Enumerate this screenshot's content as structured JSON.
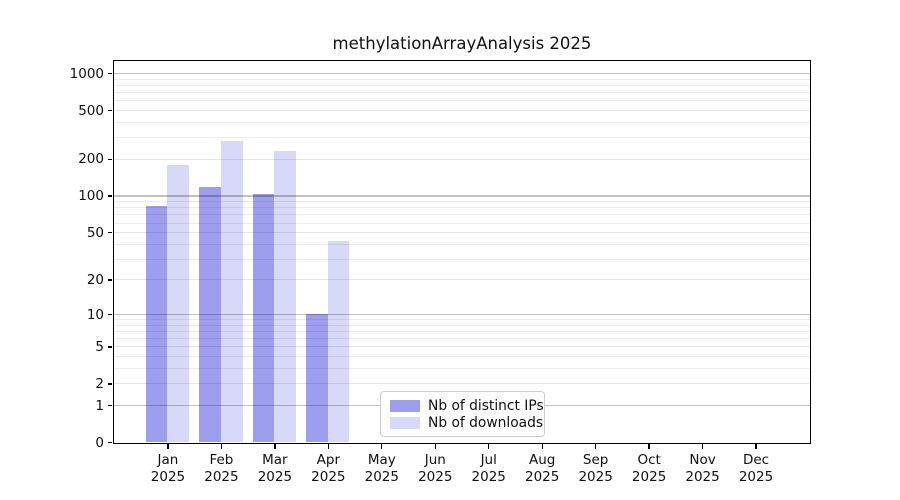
{
  "chart_data": {
    "type": "bar",
    "title": "methylationArrayAnalysis 2025",
    "categories": [
      "Jan 2025",
      "Feb 2025",
      "Mar 2025",
      "Apr 2025",
      "May 2025",
      "Jun 2025",
      "Jul 2025",
      "Aug 2025",
      "Sep 2025",
      "Oct 2025",
      "Nov 2025",
      "Dec 2025"
    ],
    "series": [
      {
        "name": "Nb of distinct IPs",
        "color": "#9e9eee",
        "values": [
          82,
          117,
          103,
          10,
          0,
          0,
          0,
          0,
          0,
          0,
          0,
          0
        ]
      },
      {
        "name": "Nb of downloads",
        "color": "#d8d8f8",
        "values": [
          180,
          280,
          233,
          42,
          0,
          0,
          0,
          0,
          0,
          0,
          0,
          0
        ]
      }
    ],
    "xlabel": "",
    "ylabel": "",
    "yscale": "log10(1+v)",
    "ylim": [
      0,
      1300
    ],
    "y_labeled_ticks": [
      0,
      1,
      2,
      5,
      10,
      20,
      50,
      100,
      200,
      500,
      1000
    ],
    "y_minor_gridlines": [
      3,
      4,
      6,
      7,
      8,
      9,
      30,
      40,
      60,
      70,
      80,
      90,
      300,
      400,
      600,
      700,
      800,
      900
    ],
    "grid": true,
    "legend_position": "inside-bottom-center",
    "colors": {
      "axis": "#000000",
      "major_grid": "#c2c2c2",
      "minor_grid": "#ececec",
      "background": "#ffffff"
    }
  }
}
